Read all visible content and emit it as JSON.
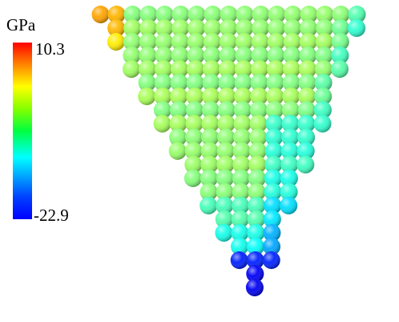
{
  "colorbar": {
    "unit": "GPa",
    "max": 10.3,
    "min": -22.9
  }
}
